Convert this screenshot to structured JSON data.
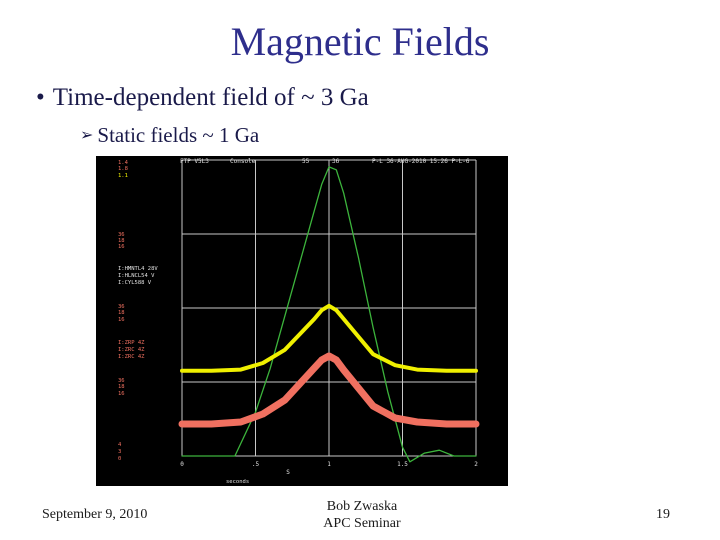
{
  "slide": {
    "title": "Magnetic Fields",
    "bullet_main": "Time-dependent field of ~ 3 Ga",
    "bullet_sub": "Static fields ~ 1 Ga",
    "footer_date": "September 9, 2010",
    "footer_author": "Bob Zwaska",
    "footer_event": "APC Seminar",
    "page_number": "19"
  },
  "scope": {
    "colors": {
      "background": "#000000",
      "grid": "#c8c8c8",
      "green": "#3cb43c",
      "yellow": "#f0f000",
      "red": "#f07060",
      "label": "#e0e0e0"
    },
    "header_texts": [
      "FTP V5L3",
      "Console",
      "55",
      "36",
      "P-L 36-AUG-2010 15:26 P-L-6"
    ],
    "left_labels": [
      {
        "text": "1.4",
        "color": "#f07060"
      },
      {
        "text": "1.8",
        "color": "#f07060"
      },
      {
        "text": "1.1",
        "color": "#f0f000"
      },
      {
        "text": "36",
        "color": "#f07060"
      },
      {
        "text": "18",
        "color": "#f07060"
      },
      {
        "text": "16",
        "color": "#f07060"
      },
      {
        "text": "I:HMNTL4 28V",
        "color": "#e0e0e0"
      },
      {
        "text": "I:HLNCL54 V",
        "color": "#e0e0e0"
      },
      {
        "text": "I:CYL588 V",
        "color": "#e0e0e0"
      },
      {
        "text": "36",
        "color": "#f07060"
      },
      {
        "text": "18",
        "color": "#f07060"
      },
      {
        "text": "16",
        "color": "#f07060"
      },
      {
        "text": "I:ZRP 4Z",
        "color": "#f07060"
      },
      {
        "text": "I:ZRC 4Z",
        "color": "#f07060"
      },
      {
        "text": "I:ZRC 4Z",
        "color": "#f07060"
      },
      {
        "text": "36",
        "color": "#f07060"
      },
      {
        "text": "18",
        "color": "#f07060"
      },
      {
        "text": "16",
        "color": "#f07060"
      },
      {
        "text": "4",
        "color": "#f07060"
      },
      {
        "text": "3",
        "color": "#f07060"
      },
      {
        "text": "0",
        "color": "#f07060"
      }
    ],
    "x_tick_labels": [
      "0",
      ".5",
      "1",
      "1.5",
      "2"
    ],
    "x_unit": "S",
    "bottom_text": "seconds"
  },
  "chart_data": {
    "type": "line",
    "title": "",
    "xlabel": "S",
    "ylabel": "",
    "xlim": [
      0,
      2
    ],
    "x_ticks": [
      "0",
      ".5",
      "1",
      "1.5",
      "2"
    ],
    "grid": true,
    "series": [
      {
        "color": "#3cb43c",
        "x": [
          0,
          0.36,
          0.5,
          0.6,
          0.7,
          0.8,
          0.9,
          0.95,
          1.0,
          1.05,
          1.1,
          1.2,
          1.3,
          1.4,
          1.5,
          1.55,
          1.65,
          1.75,
          1.85,
          2.0
        ],
        "y": [
          0,
          0,
          0.15,
          0.3,
          0.48,
          0.66,
          0.84,
          0.93,
          0.99,
          0.98,
          0.9,
          0.68,
          0.44,
          0.22,
          0.03,
          -0.02,
          0.01,
          0.02,
          0.0,
          0.0
        ]
      },
      {
        "color": "#f0f000",
        "x": [
          0,
          0.2,
          0.4,
          0.55,
          0.7,
          0.8,
          0.9,
          0.95,
          1.0,
          1.05,
          1.1,
          1.2,
          1.3,
          1.45,
          1.6,
          1.8,
          2.0
        ],
        "y": [
          0.015,
          0.015,
          0.02,
          0.05,
          0.11,
          0.18,
          0.25,
          0.29,
          0.31,
          0.29,
          0.25,
          0.17,
          0.09,
          0.04,
          0.02,
          0.015,
          0.015
        ]
      },
      {
        "color": "#f07060",
        "x": [
          0,
          0.2,
          0.4,
          0.55,
          0.7,
          0.8,
          0.9,
          0.95,
          1.0,
          1.05,
          1.1,
          1.2,
          1.3,
          1.45,
          1.6,
          1.8,
          2.0
        ],
        "y": [
          0.02,
          0.02,
          0.03,
          0.07,
          0.14,
          0.22,
          0.3,
          0.34,
          0.36,
          0.34,
          0.29,
          0.2,
          0.11,
          0.05,
          0.03,
          0.02,
          0.02
        ]
      }
    ]
  }
}
